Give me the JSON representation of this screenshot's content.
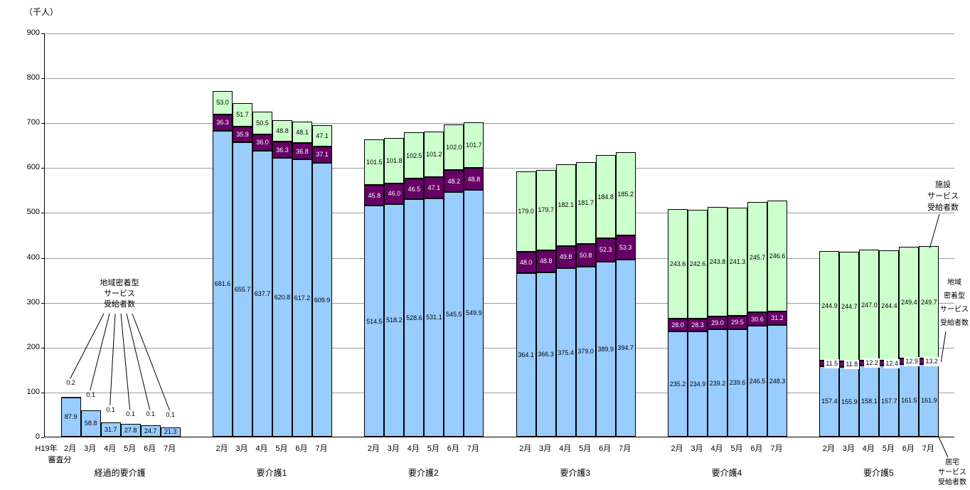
{
  "unit_label": "（千人）",
  "axis": {
    "y_ticks": [
      0,
      100,
      200,
      300,
      400,
      500,
      600,
      700,
      800,
      900
    ],
    "y_max": 900
  },
  "x_axis": {
    "era_label": "H19年",
    "era_sublabel": "審査分",
    "months": [
      "2月",
      "3月",
      "4月",
      "5月",
      "6月",
      "7月"
    ]
  },
  "annotations": {
    "community_left": "地域密着型\nサービス\n受給者数",
    "facility_right": "施設\nサービス\n受給者数",
    "community_right": "地域\n密着型\nサービス\n受給者数",
    "home_right": "居宅\nサービス\n受給者数"
  },
  "colors": {
    "home": "#99CCFF",
    "community": "#660066",
    "facility": "#CCFFCC",
    "bar_border": "#000000",
    "gridline": "#9b9b9b"
  },
  "chart_data": {
    "type": "bar",
    "stacked": true,
    "title": "",
    "ylabel": "（千人）",
    "ylim": [
      0,
      900
    ],
    "grid": true,
    "categories_months": [
      "2月",
      "3月",
      "4月",
      "5月",
      "6月",
      "7月"
    ],
    "series_names": {
      "home": "居宅サービス受給者数",
      "community": "地域密着型サービス受給者数",
      "facility": "施設サービス受給者数"
    },
    "groups": [
      {
        "label": "経過的要介護",
        "home": [
          87.9,
          58.8,
          31.7,
          27.8,
          24.7,
          21.3
        ],
        "community": [
          0.2,
          0.1,
          0.1,
          0.1,
          0.1,
          0.1
        ],
        "facility": [
          0,
          0,
          0,
          0,
          0,
          0
        ]
      },
      {
        "label": "要介護1",
        "home": [
          681.6,
          655.7,
          637.7,
          620.8,
          617.2,
          609.9
        ],
        "community": [
          36.3,
          35.9,
          36.0,
          36.3,
          36.8,
          37.1
        ],
        "facility": [
          53.0,
          51.7,
          50.5,
          48.8,
          48.1,
          47.1
        ]
      },
      {
        "label": "要介護2",
        "home": [
          514.5,
          518.2,
          528.6,
          531.1,
          545.5,
          549.9
        ],
        "community": [
          45.8,
          46.0,
          46.5,
          47.1,
          48.2,
          48.8
        ],
        "facility": [
          101.5,
          101.8,
          102.5,
          101.2,
          102.0,
          101.7
        ]
      },
      {
        "label": "要介護3",
        "home": [
          364.1,
          366.3,
          375.4,
          379.0,
          389.9,
          394.7
        ],
        "community": [
          48.0,
          48.8,
          49.8,
          50.8,
          52.3,
          53.3
        ],
        "facility": [
          179.0,
          179.7,
          182.1,
          181.7,
          184.8,
          185.2
        ]
      },
      {
        "label": "要介護4",
        "home": [
          235.2,
          234.9,
          239.2,
          239.6,
          246.5,
          248.3
        ],
        "community": [
          28.0,
          28.3,
          29.0,
          29.5,
          30.6,
          31.2
        ],
        "facility": [
          243.6,
          242.6,
          243.8,
          241.3,
          245.7,
          246.6
        ]
      },
      {
        "label": "要介護5",
        "home": [
          157.4,
          155.9,
          158.1,
          157.7,
          161.5,
          161.9
        ],
        "community": [
          11.5,
          11.8,
          12.2,
          12.4,
          12.9,
          13.2
        ],
        "facility": [
          244.9,
          244.7,
          247.0,
          244.4,
          249.4,
          249.7
        ]
      }
    ]
  }
}
